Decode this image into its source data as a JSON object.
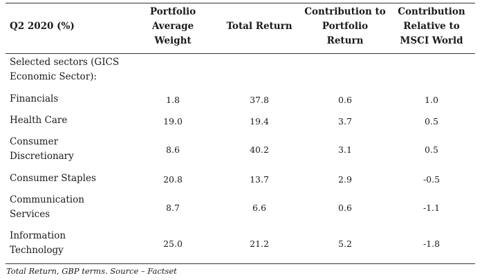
{
  "table": {
    "header": {
      "period": "Q2 2020 (%)",
      "col1": [
        "Portfolio",
        "Average",
        "Weight"
      ],
      "col2": "Total Return",
      "col3": [
        "Contribution to",
        "Portfolio",
        "Return"
      ],
      "col4": [
        "Contribution",
        "Relative to",
        "MSCI World"
      ]
    },
    "section_label": [
      "Selected sectors (GICS",
      "Economic Sector):"
    ],
    "rows": [
      {
        "sector": [
          "Financials"
        ],
        "weight": "1.8",
        "total_return": "37.8",
        "contribution": "0.6",
        "relative": "1.0"
      },
      {
        "sector": [
          "Health Care"
        ],
        "weight": "19.0",
        "total_return": "19.4",
        "contribution": "3.7",
        "relative": "0.5"
      },
      {
        "sector": [
          "Consumer",
          "Discretionary"
        ],
        "weight": "8.6",
        "total_return": "40.2",
        "contribution": "3.1",
        "relative": "0.5"
      },
      {
        "sector": [
          "Consumer Staples"
        ],
        "weight": "20.8",
        "total_return": "13.7",
        "contribution": "2.9",
        "relative": "-0.5"
      },
      {
        "sector": [
          "Communication",
          "Services"
        ],
        "weight": "8.7",
        "total_return": "6.6",
        "contribution": "0.6",
        "relative": "-1.1"
      },
      {
        "sector": [
          "Information",
          "Technology"
        ],
        "weight": "25.0",
        "total_return": "21.2",
        "contribution": "5.2",
        "relative": "-1.8"
      }
    ]
  },
  "footnote": "Total Return, GBP terms. Source – Factset"
}
